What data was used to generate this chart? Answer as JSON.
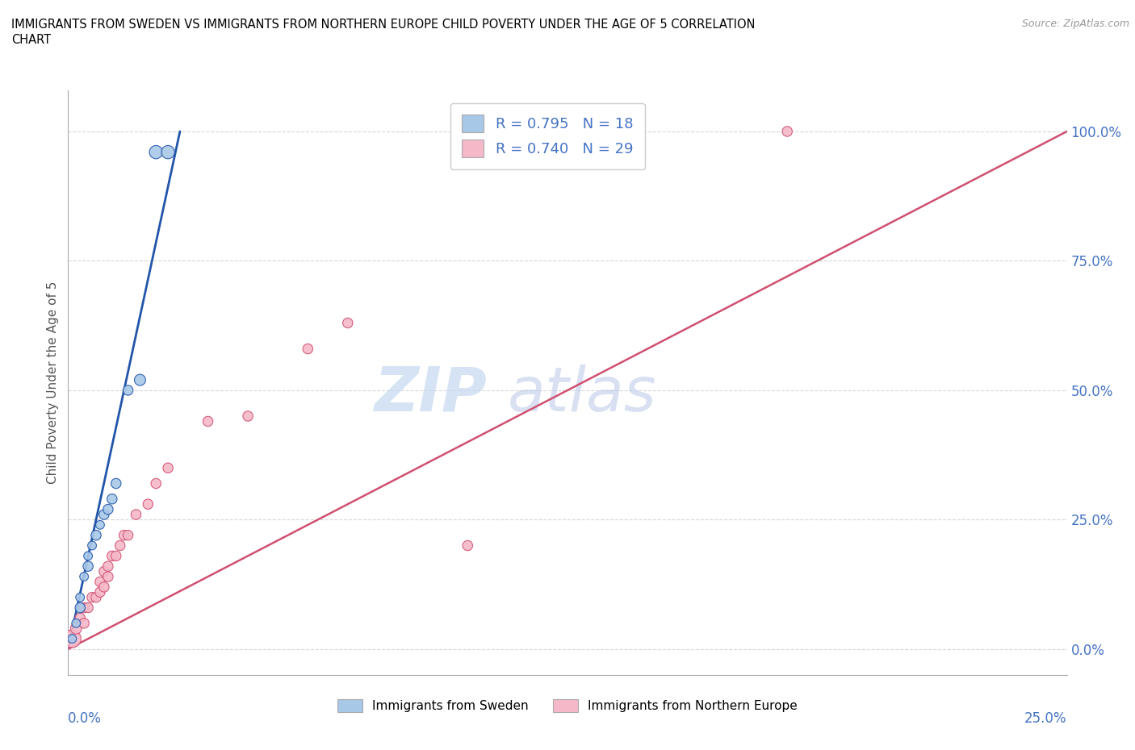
{
  "title_line1": "IMMIGRANTS FROM SWEDEN VS IMMIGRANTS FROM NORTHERN EUROPE CHILD POVERTY UNDER THE AGE OF 5 CORRELATION",
  "title_line2": "CHART",
  "source": "Source: ZipAtlas.com",
  "xlabel_bottom_left": "0.0%",
  "xlabel_bottom_right": "25.0%",
  "ylabel": "Child Poverty Under the Age of 5",
  "ytick_values": [
    0.0,
    25.0,
    50.0,
    75.0,
    100.0
  ],
  "ytick_labels": [
    "0.0%",
    "25.0%",
    "50.0%",
    "75.0%",
    "100.0%"
  ],
  "xlim": [
    0.0,
    25.0
  ],
  "ylim": [
    -5.0,
    108.0
  ],
  "legend_sweden": "R = 0.795   N = 18",
  "legend_northern": "R = 0.740   N = 29",
  "sweden_color": "#a8c8e8",
  "northern_color": "#f5b8c8",
  "sweden_line_color": "#2255aa",
  "northern_line_color": "#d05070",
  "legend_label_sweden": "Immigrants from Sweden",
  "legend_label_northern": "Immigrants from Northern Europe",
  "sweden_scatter_x": [
    0.1,
    0.2,
    0.3,
    0.3,
    0.4,
    0.5,
    0.5,
    0.6,
    0.7,
    0.8,
    0.9,
    1.0,
    1.1,
    1.2,
    1.5,
    1.8,
    2.2,
    2.5
  ],
  "sweden_scatter_y": [
    2.0,
    5.0,
    8.0,
    10.0,
    14.0,
    16.0,
    18.0,
    20.0,
    22.0,
    24.0,
    26.0,
    27.0,
    29.0,
    32.0,
    50.0,
    52.0,
    96.0,
    96.0
  ],
  "sweden_sizes": [
    60,
    60,
    80,
    60,
    60,
    80,
    60,
    60,
    80,
    60,
    80,
    80,
    80,
    80,
    80,
    100,
    140,
    140
  ],
  "northern_scatter_x": [
    0.1,
    0.2,
    0.3,
    0.4,
    0.4,
    0.5,
    0.6,
    0.7,
    0.8,
    0.8,
    0.9,
    0.9,
    1.0,
    1.0,
    1.1,
    1.2,
    1.3,
    1.4,
    1.5,
    1.7,
    2.0,
    2.2,
    2.5,
    3.5,
    4.5,
    6.0,
    7.0,
    10.0,
    18.0
  ],
  "northern_scatter_y": [
    2.0,
    4.0,
    6.0,
    5.0,
    8.0,
    8.0,
    10.0,
    10.0,
    11.0,
    13.0,
    12.0,
    15.0,
    14.0,
    16.0,
    18.0,
    18.0,
    20.0,
    22.0,
    22.0,
    26.0,
    28.0,
    32.0,
    35.0,
    44.0,
    45.0,
    58.0,
    63.0,
    20.0,
    100.0
  ],
  "northern_sizes": [
    250,
    100,
    80,
    80,
    80,
    80,
    80,
    80,
    80,
    80,
    80,
    80,
    80,
    80,
    80,
    80,
    80,
    80,
    80,
    80,
    80,
    80,
    80,
    80,
    80,
    80,
    80,
    80,
    80
  ],
  "sweden_trendline_x": [
    0.0,
    2.8
  ],
  "sweden_trendline_y": [
    0.0,
    100.0
  ],
  "northern_trendline_x": [
    0.0,
    25.0
  ],
  "northern_trendline_y": [
    0.0,
    100.0
  ],
  "watermark_zip": "ZIP",
  "watermark_atlas": "atlas",
  "background_color": "#ffffff",
  "grid_color": "#cccccc"
}
